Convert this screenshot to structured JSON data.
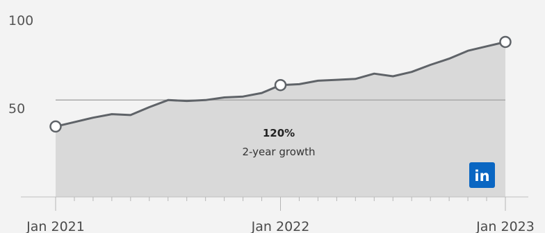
{
  "chart_data": {
    "type": "area",
    "x": [
      "2021-01",
      "2021-02",
      "2021-03",
      "2021-04",
      "2021-05",
      "2021-06",
      "2021-07",
      "2021-08",
      "2021-09",
      "2021-10",
      "2021-11",
      "2021-12",
      "2022-01",
      "2022-02",
      "2022-03",
      "2022-04",
      "2022-05",
      "2022-06",
      "2022-07",
      "2022-08",
      "2022-09",
      "2022-10",
      "2022-11",
      "2022-12",
      "2023-01"
    ],
    "series": [
      {
        "values": [
          40,
          42.5,
          45,
          47,
          46.5,
          51,
          55,
          54.5,
          55,
          56.5,
          57,
          59,
          63.5,
          64,
          66,
          66.5,
          67,
          70,
          68.5,
          71,
          75,
          78.5,
          83,
          85.5,
          88
        ]
      }
    ],
    "highlighted_points": [
      {
        "x": "2021-01",
        "y": 40
      },
      {
        "x": "2022-01",
        "y": 63.5
      },
      {
        "x": "2023-01",
        "y": 88
      }
    ],
    "reference_line": 55,
    "y_ticks": [
      {
        "value": 100,
        "label": "100"
      },
      {
        "value": 50,
        "label": "50"
      }
    ],
    "x_ticks": [
      {
        "x": "2021-01",
        "label": "Jan 2021"
      },
      {
        "x": "2022-01",
        "label": "Jan 2022"
      },
      {
        "x": "2023-01",
        "label": "Jan 2023"
      }
    ],
    "annotation": {
      "value": "120%",
      "label": "2-year growth"
    },
    "ylim": [
      0,
      100
    ],
    "grid": false,
    "colors": {
      "line": "#5f6368",
      "area": "#d9d9d9",
      "logo": "#0a66c2",
      "background": "#f3f3f3"
    }
  },
  "logo": {
    "text": "in",
    "name": "LinkedIn"
  }
}
